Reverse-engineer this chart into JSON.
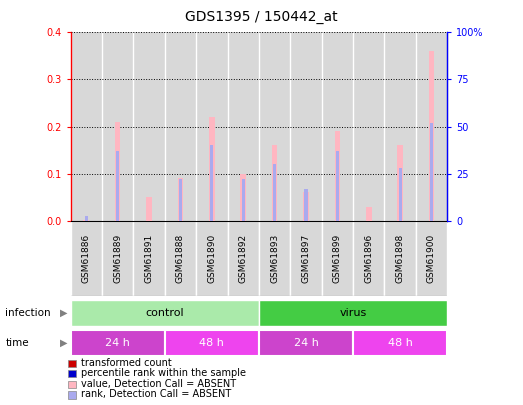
{
  "title": "GDS1395 / 150442_at",
  "samples": [
    "GSM61886",
    "GSM61889",
    "GSM61891",
    "GSM61888",
    "GSM61890",
    "GSM61892",
    "GSM61893",
    "GSM61897",
    "GSM61899",
    "GSM61896",
    "GSM61898",
    "GSM61900"
  ],
  "transformed_count": [
    0.002,
    0.21,
    0.05,
    0.09,
    0.22,
    0.1,
    0.16,
    0.06,
    0.19,
    0.03,
    0.16,
    0.36
  ],
  "percentile_rank_pct": [
    2.5,
    37,
    0,
    22,
    40,
    22,
    30,
    17,
    37,
    0,
    28,
    52
  ],
  "infection_groups": [
    {
      "label": "control",
      "start": 0,
      "end": 6,
      "color": "#aaeaaa"
    },
    {
      "label": "virus",
      "start": 6,
      "end": 12,
      "color": "#44cc44"
    }
  ],
  "time_groups": [
    {
      "label": "24 h",
      "start": 0,
      "end": 3,
      "color": "#cc44cc"
    },
    {
      "label": "48 h",
      "start": 3,
      "end": 6,
      "color": "#ee44ee"
    },
    {
      "label": "24 h",
      "start": 6,
      "end": 9,
      "color": "#cc44cc"
    },
    {
      "label": "48 h",
      "start": 9,
      "end": 12,
      "color": "#ee44ee"
    }
  ],
  "ylim_left": [
    0,
    0.4
  ],
  "ylim_right": [
    0,
    100
  ],
  "yticks_left": [
    0,
    0.1,
    0.2,
    0.3,
    0.4
  ],
  "yticks_right": [
    0,
    25,
    50,
    75,
    100
  ],
  "bar_color_absent": "#ffb6c1",
  "rank_color_absent": "#aaaaee",
  "col_bg_color": "#d8d8d8",
  "legend_items": [
    {
      "label": "transformed count",
      "color": "#cc0000"
    },
    {
      "label": "percentile rank within the sample",
      "color": "#0000cc"
    },
    {
      "label": "value, Detection Call = ABSENT",
      "color": "#ffb6c1"
    },
    {
      "label": "rank, Detection Call = ABSENT",
      "color": "#aaaaee"
    }
  ]
}
